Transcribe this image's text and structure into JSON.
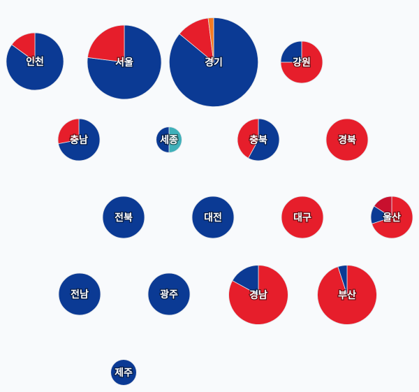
{
  "chart_data": {
    "type": "pie",
    "regions": [
      {
        "name": "인천",
        "size": 15,
        "values": [
          85,
          15
        ],
        "colors": [
          "#0b3a94",
          "#e61e2b"
        ]
      },
      {
        "name": "서울",
        "size": 25,
        "values": [
          77,
          23
        ],
        "colors": [
          "#0b3a94",
          "#e61e2b"
        ]
      },
      {
        "name": "경기",
        "size": 36,
        "values": [
          86,
          12,
          2
        ],
        "colors": [
          "#0b3a94",
          "#e61e2b",
          "#f47a20"
        ]
      },
      {
        "name": "강원",
        "size": 8,
        "values": [
          75,
          25
        ],
        "colors": [
          "#e61e2b",
          "#0b3a94"
        ]
      },
      {
        "name": "충남",
        "size": 8,
        "values": [
          72,
          28
        ],
        "colors": [
          "#0b3a94",
          "#e61e2b"
        ]
      },
      {
        "name": "세종",
        "size": 3,
        "values": [
          50,
          50
        ],
        "colors": [
          "#3fb0b9",
          "#0b3a94"
        ]
      },
      {
        "name": "충북",
        "size": 8,
        "values": [
          58,
          42
        ],
        "colors": [
          "#0b3a94",
          "#e61e2b"
        ]
      },
      {
        "name": "경북",
        "size": 8,
        "values": [
          100
        ],
        "colors": [
          "#e61e2b"
        ]
      },
      {
        "name": "전북",
        "size": 8,
        "values": [
          100
        ],
        "colors": [
          "#0b3a94"
        ]
      },
      {
        "name": "대전",
        "size": 8,
        "values": [
          100
        ],
        "colors": [
          "#0b3a94"
        ]
      },
      {
        "name": "대구",
        "size": 8,
        "values": [
          100
        ],
        "colors": [
          "#e61e2b"
        ]
      },
      {
        "name": "울산",
        "size": 8,
        "values": [
          70,
          14,
          16
        ],
        "colors": [
          "#e61e2b",
          "#0b3a94",
          "#c8102e"
        ]
      },
      {
        "name": "전남",
        "size": 8,
        "values": [
          100
        ],
        "colors": [
          "#0b3a94"
        ]
      },
      {
        "name": "광주",
        "size": 8,
        "values": [
          100
        ],
        "colors": [
          "#0b3a94"
        ]
      },
      {
        "name": "경남",
        "size": 16,
        "values": [
          83,
          17
        ],
        "colors": [
          "#e61e2b",
          "#0b3a94"
        ]
      },
      {
        "name": "부산",
        "size": 16,
        "values": [
          95,
          5
        ],
        "colors": [
          "#e61e2b",
          "#0b3a94"
        ]
      },
      {
        "name": "제주",
        "size": 3,
        "values": [
          100
        ],
        "colors": [
          "#0b3a94"
        ]
      }
    ]
  }
}
